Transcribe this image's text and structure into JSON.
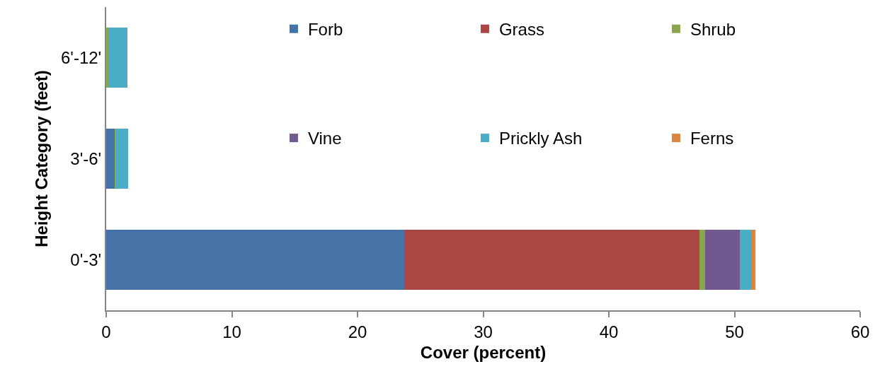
{
  "chart_data": {
    "type": "bar",
    "orientation": "horizontal",
    "stacked": true,
    "categories": [
      "6'-12'",
      "3'-6'",
      "0'-3'"
    ],
    "series": [
      {
        "name": "Forb",
        "color": "#4572a7",
        "values": [
          0,
          0.67,
          23.7
        ]
      },
      {
        "name": "Grass",
        "color": "#aa4643",
        "values": [
          0,
          0,
          23.5
        ]
      },
      {
        "name": "Shrub",
        "color": "#89a54e",
        "values": [
          0.15,
          0.13,
          0.45
        ]
      },
      {
        "name": "Vine",
        "color": "#71588f",
        "values": [
          0,
          0,
          2.8
        ]
      },
      {
        "name": "Prickly Ash",
        "color": "#4bacc6",
        "values": [
          1.55,
          0.92,
          0.95
        ]
      },
      {
        "name": "Ferns",
        "color": "#db843d",
        "values": [
          0,
          0,
          0.25
        ]
      }
    ],
    "xlabel": "Cover (percent)",
    "ylabel": "Height Category (feet)",
    "xlim": [
      0,
      60
    ],
    "xticks": [
      0,
      10,
      20,
      30,
      40,
      50,
      60
    ],
    "grid": false,
    "legend": "top"
  }
}
